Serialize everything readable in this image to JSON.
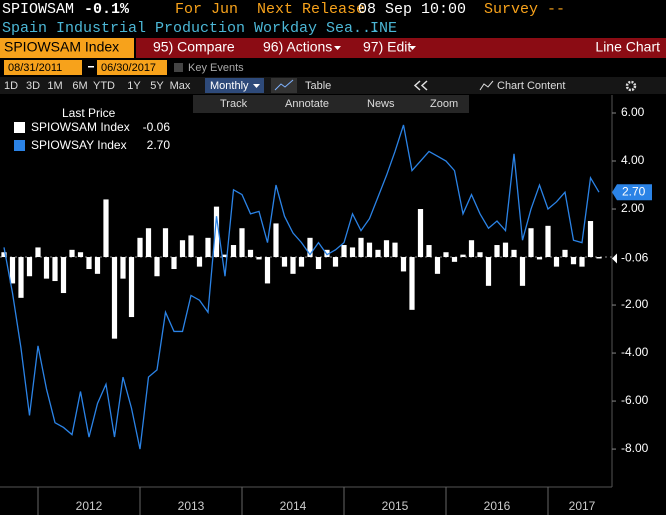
{
  "header": {
    "ticker": "SPIOWSAM",
    "change": "-0.1%",
    "period": "For Jun",
    "next_release_label": "Next Release",
    "next_release": "08 Sep 10:00",
    "survey": "Survey --",
    "description": "Spain Industrial Production Workday Sea...",
    "source": "INE"
  },
  "toolbar": {
    "security": "SPIOWSAM Index",
    "menu": [
      "95) Compare",
      "96) Actions",
      "97) Edit"
    ],
    "view": "Line Chart",
    "start_date": "08/31/2011",
    "end_date": "06/30/2017",
    "key_events": "Key Events",
    "ranges": [
      "1D",
      "3D",
      "1M",
      "6M",
      "YTD",
      "1Y",
      "5Y",
      "Max"
    ],
    "frequency": "Monthly",
    "table": "Table",
    "chart_content": "Chart Content",
    "tools": [
      "Track",
      "Annotate",
      "News",
      "Zoom"
    ]
  },
  "chart_data": {
    "type": "combo",
    "legend_title": "Last Price",
    "categories": [
      null,
      null,
      null,
      null,
      null,
      null,
      null,
      null,
      null,
      null,
      "2012",
      null,
      null,
      null,
      null,
      null,
      null,
      null,
      null,
      null,
      null,
      null,
      "2013",
      null,
      null,
      null,
      null,
      null,
      null,
      null,
      null,
      null,
      null,
      null,
      "2014",
      null,
      null,
      null,
      null,
      null,
      null,
      null,
      null,
      null,
      null,
      null,
      "2015",
      null,
      null,
      null,
      null,
      null,
      null,
      null,
      null,
      null,
      null,
      null,
      "2016",
      null,
      null,
      null,
      null,
      null,
      null,
      null,
      null,
      null,
      "2017",
      null,
      null
    ],
    "series": [
      {
        "name": "SPIOWSAM Index",
        "type": "bar",
        "color": "#ffffff",
        "last_label": "-0.06",
        "values": [
          0.2,
          -1.1,
          -1.7,
          -0.8,
          0.4,
          -0.9,
          -1.0,
          -1.5,
          0.3,
          0.2,
          -0.5,
          -0.7,
          2.4,
          -3.4,
          -0.9,
          -2.5,
          0.8,
          1.2,
          -0.8,
          1.2,
          -0.5,
          0.7,
          0.9,
          -0.4,
          0.8,
          2.1,
          0.1,
          0.5,
          1.2,
          0.3,
          -0.1,
          -1.1,
          1.4,
          -0.4,
          -0.7,
          -0.4,
          0.8,
          -0.5,
          0.3,
          -0.4,
          0.5,
          0.4,
          0.8,
          0.6,
          0.3,
          0.7,
          0.6,
          -0.6,
          -2.2,
          2.0,
          0.5,
          -0.7,
          0.2,
          -0.2,
          0.1,
          0.7,
          0.2,
          -1.2,
          0.5,
          0.6,
          0.3,
          -1.2,
          1.2,
          -0.1,
          1.3,
          -0.4,
          0.3,
          -0.3,
          -0.4,
          1.5,
          -0.06
        ]
      },
      {
        "name": "SPIOWSAY Index",
        "type": "line",
        "color": "#2b83e6",
        "last_label": "2.70",
        "values": [
          0.4,
          -1.5,
          -3.8,
          -6.6,
          -3.7,
          -5.5,
          -6.9,
          -7.1,
          -7.4,
          -5.6,
          -7.5,
          -6.1,
          -5.3,
          -7.5,
          -5.0,
          -6.3,
          -8.0,
          -5.0,
          -4.7,
          -2.3,
          -3.1,
          -3.1,
          -1.6,
          -1.8,
          -2.3,
          1.7,
          -0.8,
          2.8,
          2.6,
          1.8,
          1.9,
          0.6,
          3.0,
          1.7,
          1.0,
          0.6,
          0.1,
          0.6,
          0.1,
          0.3,
          0.6,
          1.8,
          1.1,
          1.6,
          2.5,
          3.4,
          4.4,
          5.5,
          3.6,
          4.0,
          4.4,
          4.2,
          4.0,
          3.6,
          1.8,
          2.6,
          1.8,
          1.2,
          1.5,
          1.1,
          4.3,
          0.7,
          2.0,
          3.0,
          2.0,
          2.3,
          2.7,
          0.7,
          0.6,
          3.3,
          2.7
        ]
      }
    ],
    "ylim": [
      -9.58,
      6.75
    ],
    "yticks": [
      {
        "value": 6,
        "label": "6.00"
      },
      {
        "value": 4,
        "label": "4.00"
      },
      {
        "value": 2,
        "label": "2.00"
      },
      {
        "value": -2,
        "label": "-2.00"
      },
      {
        "value": -4,
        "label": "-4.00"
      },
      {
        "value": -6,
        "label": "-6.00"
      },
      {
        "value": -8,
        "label": "-8.00"
      }
    ]
  }
}
